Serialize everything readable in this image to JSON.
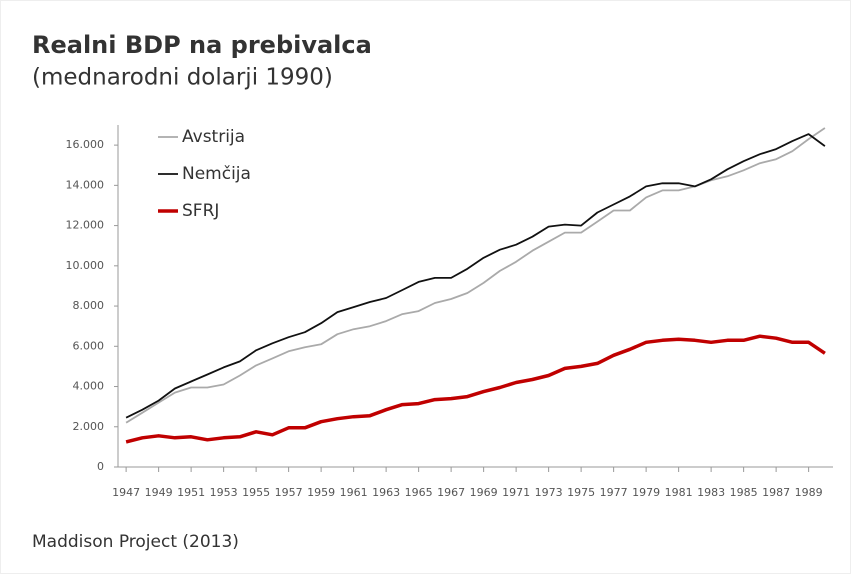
{
  "chart_data": {
    "type": "line",
    "title": "Realni BDP na prebivalca",
    "subtitle": "(mednarodni dolarji 1990)",
    "source": "Maddison Project (2013)",
    "x": [
      1947,
      1948,
      1949,
      1950,
      1951,
      1952,
      1953,
      1954,
      1955,
      1956,
      1957,
      1958,
      1959,
      1960,
      1961,
      1962,
      1963,
      1964,
      1965,
      1966,
      1967,
      1968,
      1969,
      1970,
      1971,
      1972,
      1973,
      1974,
      1975,
      1976,
      1977,
      1978,
      1979,
      1980,
      1981,
      1982,
      1983,
      1984,
      1985,
      1986,
      1987,
      1988,
      1989,
      1990
    ],
    "xlim": [
      1946.5,
      1990.5
    ],
    "xticks": [
      1947,
      1949,
      1951,
      1953,
      1955,
      1957,
      1959,
      1961,
      1963,
      1965,
      1967,
      1969,
      1971,
      1973,
      1975,
      1977,
      1979,
      1981,
      1983,
      1985,
      1987,
      1989
    ],
    "ylim": [
      0,
      17000
    ],
    "yticks": [
      0,
      {
        "value": 2000,
        "label": "2.000"
      },
      {
        "value": 4000,
        "label": "4.000"
      },
      {
        "value": 6000,
        "label": "6.000"
      },
      {
        "value": 8000,
        "label": "8.000"
      },
      {
        "value": 10000,
        "label": "10.000"
      },
      {
        "value": 12000,
        "label": "12.000"
      },
      {
        "value": 14000,
        "label": "14.000"
      },
      {
        "value": 16000,
        "label": "16.000"
      }
    ],
    "grid": false,
    "legend": "upper left",
    "series": [
      {
        "name": "Avstrija",
        "color": "#aaaaaa",
        "values": [
          2200,
          2700,
          3200,
          3700,
          3950,
          3950,
          4100,
          4550,
          5050,
          5400,
          5750,
          5950,
          6100,
          6600,
          6850,
          7000,
          7250,
          7600,
          7750,
          8150,
          8350,
          8650,
          9150,
          9750,
          10200,
          10750,
          11200,
          11650,
          11650,
          12200,
          12750,
          12750,
          13400,
          13750,
          13750,
          13950,
          14250,
          14450,
          14750,
          15100,
          15300,
          15700,
          16300,
          16850
        ]
      },
      {
        "name": "Nemčija",
        "color": "#111111",
        "values": [
          2450,
          2850,
          3300,
          3900,
          4250,
          4600,
          4950,
          5250,
          5800,
          6150,
          6450,
          6700,
          7150,
          7700,
          7950,
          8200,
          8400,
          8800,
          9200,
          9400,
          9400,
          9850,
          10400,
          10800,
          11050,
          11450,
          11950,
          12050,
          12000,
          12650,
          13050,
          13450,
          13950,
          14100,
          14100,
          13950,
          14300,
          14800,
          15200,
          15550,
          15800,
          16200,
          16550,
          15950
        ]
      },
      {
        "name": "SFRJ",
        "color": "#c00000",
        "values": [
          1250,
          1450,
          1550,
          1450,
          1500,
          1350,
          1450,
          1500,
          1750,
          1600,
          1950,
          1950,
          2250,
          2400,
          2500,
          2550,
          2850,
          3100,
          3150,
          3350,
          3400,
          3500,
          3750,
          3950,
          4200,
          4350,
          4550,
          4900,
          5000,
          5150,
          5550,
          5850,
          6200,
          6300,
          6350,
          6300,
          6200,
          6300,
          6300,
          6500,
          6400,
          6200,
          6200,
          5650
        ]
      }
    ]
  }
}
